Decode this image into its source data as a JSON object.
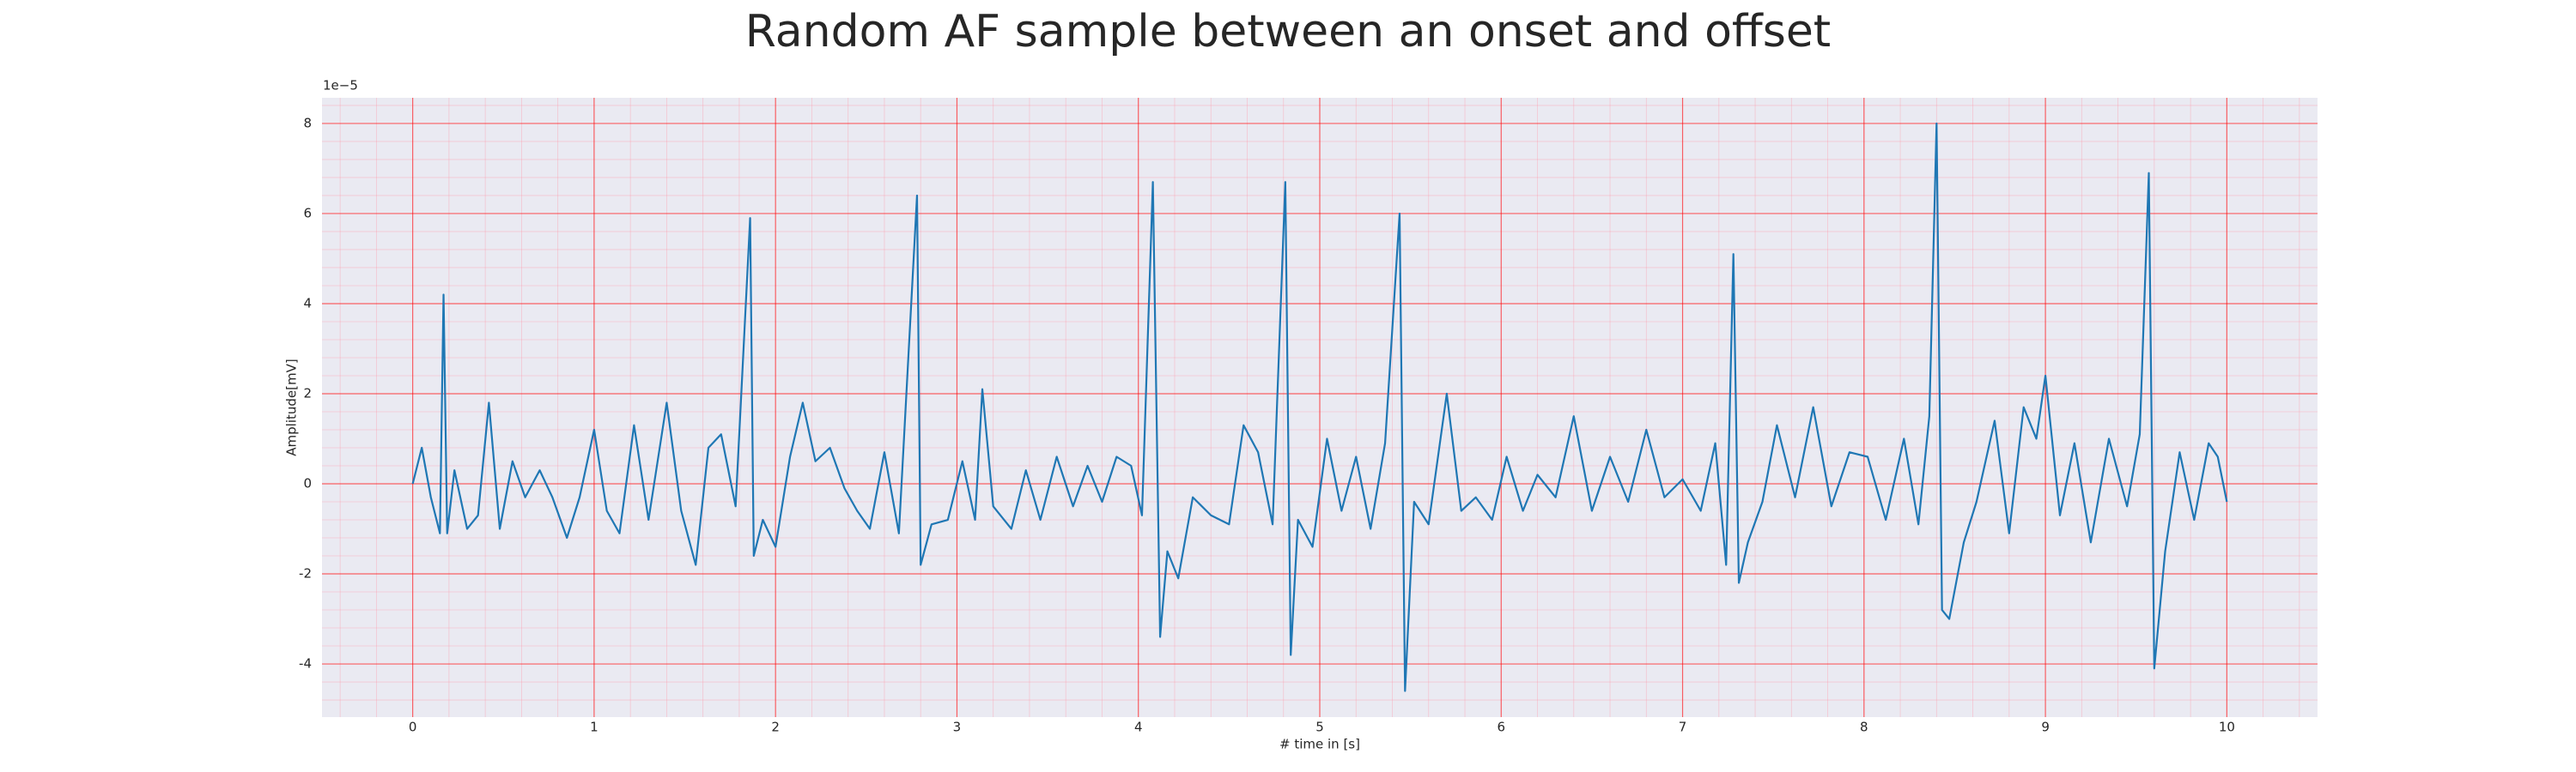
{
  "chart_data": {
    "type": "line",
    "title": "Random AF sample between an onset and offset",
    "xlabel": "# time in [s]",
    "ylabel": "Amplitude[mV]",
    "y_offset_label": "1e−5",
    "xlim": [
      -0.5,
      10.5
    ],
    "ylim": [
      -5.18,
      8.57
    ],
    "xticks": [
      0,
      1,
      2,
      3,
      4,
      5,
      6,
      7,
      8,
      9,
      10
    ],
    "yticks": [
      -4,
      -2,
      0,
      2,
      4,
      6,
      8
    ],
    "grid": true,
    "minor_grid": true,
    "background": "#eaeaf2",
    "series": [
      {
        "color": "#1f77b4",
        "x": [
          0,
          0.05,
          0.1,
          0.15,
          0.17,
          0.19,
          0.23,
          0.3,
          0.36,
          0.42,
          0.48,
          0.55,
          0.62,
          0.7,
          0.77,
          0.85,
          0.92,
          1.0,
          1.07,
          1.14,
          1.22,
          1.3,
          1.4,
          1.48,
          1.56,
          1.63,
          1.7,
          1.78,
          1.86,
          1.88,
          1.93,
          2.0,
          2.08,
          2.15,
          2.22,
          2.3,
          2.38,
          2.45,
          2.52,
          2.6,
          2.68,
          2.78,
          2.8,
          2.86,
          2.95,
          3.03,
          3.1,
          3.14,
          3.2,
          3.3,
          3.38,
          3.46,
          3.55,
          3.64,
          3.72,
          3.8,
          3.88,
          3.96,
          4.02,
          4.08,
          4.12,
          4.16,
          4.22,
          4.3,
          4.4,
          4.5,
          4.58,
          4.66,
          4.74,
          4.81,
          4.84,
          4.88,
          4.96,
          5.04,
          5.12,
          5.2,
          5.28,
          5.36,
          5.44,
          5.47,
          5.52,
          5.6,
          5.7,
          5.78,
          5.86,
          5.95,
          6.03,
          6.12,
          6.2,
          6.3,
          6.4,
          6.5,
          6.6,
          6.7,
          6.8,
          6.9,
          7.0,
          7.1,
          7.18,
          7.24,
          7.28,
          7.31,
          7.36,
          7.44,
          7.52,
          7.62,
          7.72,
          7.82,
          7.92,
          8.02,
          8.12,
          8.22,
          8.3,
          8.36,
          8.4,
          8.43,
          8.47,
          8.55,
          8.62,
          8.72,
          8.8,
          8.88,
          8.95,
          9.0,
          9.08,
          9.16,
          9.25,
          9.35,
          9.45,
          9.52,
          9.57,
          9.6,
          9.66,
          9.74,
          9.82,
          9.9,
          9.95,
          10.0
        ],
        "values": [
          0,
          0.8,
          -0.3,
          -1.1,
          4.2,
          -1.1,
          0.3,
          -1.0,
          -0.7,
          1.8,
          -1.0,
          0.5,
          -0.3,
          0.3,
          -0.3,
          -1.2,
          -0.3,
          1.2,
          -0.6,
          -1.1,
          1.3,
          -0.8,
          1.8,
          -0.6,
          -1.8,
          0.8,
          1.1,
          -0.5,
          5.9,
          -1.6,
          -0.8,
          -1.4,
          0.6,
          1.8,
          0.5,
          0.8,
          -0.1,
          -0.6,
          -1.0,
          0.7,
          -1.1,
          6.4,
          -1.8,
          -0.9,
          -0.8,
          0.5,
          -0.8,
          2.1,
          -0.5,
          -1.0,
          0.3,
          -0.8,
          0.6,
          -0.5,
          0.4,
          -0.4,
          0.6,
          0.4,
          -0.7,
          6.7,
          -3.4,
          -1.5,
          -2.1,
          -0.3,
          -0.7,
          -0.9,
          1.3,
          0.7,
          -0.9,
          6.7,
          -3.8,
          -0.8,
          -1.4,
          1.0,
          -0.6,
          0.6,
          -1.0,
          0.9,
          6.0,
          -4.6,
          -0.4,
          -0.9,
          2.0,
          -0.6,
          -0.3,
          -0.8,
          0.6,
          -0.6,
          0.2,
          -0.3,
          1.5,
          -0.6,
          0.6,
          -0.4,
          1.2,
          -0.3,
          0.1,
          -0.6,
          0.9,
          -1.8,
          5.1,
          -2.2,
          -1.3,
          -0.4,
          1.3,
          -0.3,
          1.7,
          -0.5,
          0.7,
          0.6,
          -0.8,
          1.0,
          -0.9,
          1.5,
          8.0,
          -2.8,
          -3.0,
          -1.3,
          -0.4,
          1.4,
          -1.1,
          1.7,
          1.0,
          2.4,
          -0.7,
          0.9,
          -1.3,
          1.0,
          -0.5,
          1.1,
          6.9,
          -4.1,
          -1.5,
          0.7,
          -0.8,
          0.9,
          0.6,
          -0.4
        ]
      }
    ]
  }
}
